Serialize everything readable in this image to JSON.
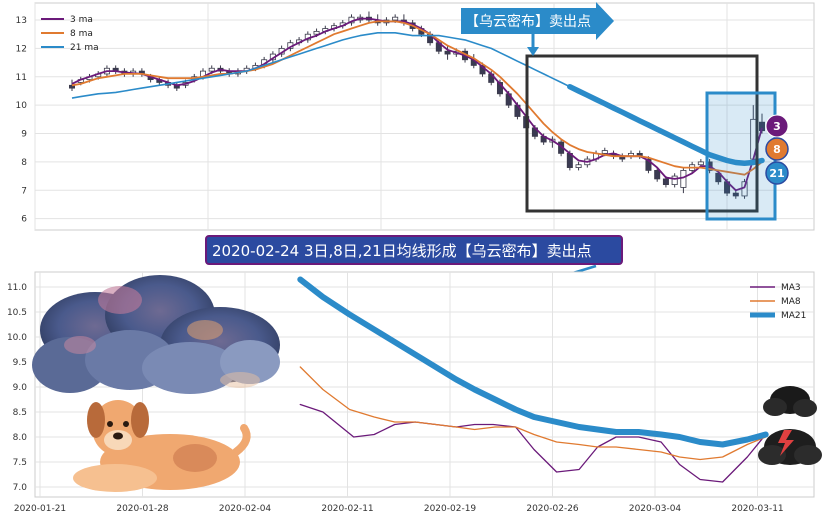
{
  "banner": {
    "text": "【乌云密布】卖出点"
  },
  "caption": {
    "text": "2020-02-24 3日,8日,21日均线形成【乌云密布】卖出点"
  },
  "colors": {
    "ma3": "#6b1a7a",
    "ma8": "#e07a30",
    "ma21": "#2b8bc9",
    "banner": "#2b8bc9",
    "caption_bg": "#2b4aa0",
    "box": "#333333",
    "highlight": "#2b8bc9"
  },
  "chart_data": [
    {
      "type": "candlestick",
      "title": "",
      "ylim": [
        5.6,
        13.6
      ],
      "y_ticks": [
        6,
        7,
        8,
        9,
        10,
        11,
        12,
        13
      ],
      "grid": true,
      "legend_position": "top-left",
      "legend": [
        "3 ma",
        "8 ma",
        "21 ma"
      ],
      "candles": [
        [
          10.7,
          10.9,
          10.5,
          10.6
        ],
        [
          10.8,
          11.0,
          10.7,
          10.9
        ],
        [
          10.9,
          11.1,
          10.8,
          11.0
        ],
        [
          11.0,
          11.2,
          10.9,
          11.1
        ],
        [
          11.1,
          11.4,
          11.0,
          11.3
        ],
        [
          11.3,
          11.4,
          11.1,
          11.2
        ],
        [
          11.2,
          11.3,
          11.0,
          11.1
        ],
        [
          11.1,
          11.3,
          11.0,
          11.2
        ],
        [
          11.2,
          11.3,
          11.0,
          11.1
        ],
        [
          11.0,
          11.1,
          10.8,
          10.9
        ],
        [
          10.9,
          11.0,
          10.7,
          10.8
        ],
        [
          10.8,
          10.9,
          10.6,
          10.7
        ],
        [
          10.7,
          10.8,
          10.5,
          10.6
        ],
        [
          10.7,
          10.9,
          10.6,
          10.8
        ],
        [
          10.9,
          11.1,
          10.8,
          11.0
        ],
        [
          11.0,
          11.3,
          10.9,
          11.2
        ],
        [
          11.2,
          11.4,
          11.1,
          11.3
        ],
        [
          11.3,
          11.4,
          11.1,
          11.2
        ],
        [
          11.2,
          11.3,
          11.0,
          11.1
        ],
        [
          11.1,
          11.3,
          11.0,
          11.2
        ],
        [
          11.2,
          11.4,
          11.1,
          11.3
        ],
        [
          11.3,
          11.5,
          11.2,
          11.4
        ],
        [
          11.4,
          11.7,
          11.3,
          11.6
        ],
        [
          11.6,
          11.9,
          11.5,
          11.8
        ],
        [
          11.8,
          12.1,
          11.7,
          12.0
        ],
        [
          12.0,
          12.3,
          11.9,
          12.2
        ],
        [
          12.2,
          12.4,
          12.1,
          12.3
        ],
        [
          12.3,
          12.6,
          12.2,
          12.5
        ],
        [
          12.5,
          12.7,
          12.4,
          12.6
        ],
        [
          12.6,
          12.8,
          12.5,
          12.7
        ],
        [
          12.7,
          12.9,
          12.6,
          12.8
        ],
        [
          12.8,
          13.0,
          12.7,
          12.9
        ],
        [
          12.9,
          13.2,
          12.8,
          13.1
        ],
        [
          13.0,
          13.2,
          12.9,
          13.1
        ],
        [
          13.1,
          13.3,
          12.9,
          13.0
        ],
        [
          13.0,
          13.2,
          12.8,
          12.9
        ],
        [
          12.9,
          13.1,
          12.8,
          13.0
        ],
        [
          13.0,
          13.2,
          12.9,
          13.1
        ],
        [
          13.0,
          13.2,
          12.8,
          12.9
        ],
        [
          12.9,
          13.0,
          12.6,
          12.7
        ],
        [
          12.7,
          12.8,
          12.4,
          12.5
        ],
        [
          12.5,
          12.6,
          12.1,
          12.2
        ],
        [
          12.2,
          12.3,
          11.8,
          11.9
        ],
        [
          11.9,
          12.1,
          11.6,
          11.8
        ],
        [
          11.8,
          12.0,
          11.7,
          11.9
        ],
        [
          11.9,
          12.0,
          11.5,
          11.6
        ],
        [
          11.6,
          11.8,
          11.3,
          11.4
        ],
        [
          11.4,
          11.5,
          11.0,
          11.1
        ],
        [
          11.1,
          11.2,
          10.7,
          10.8
        ],
        [
          10.8,
          10.9,
          10.3,
          10.4
        ],
        [
          10.4,
          10.5,
          9.9,
          10.0
        ],
        [
          10.0,
          10.1,
          9.5,
          9.6
        ],
        [
          9.6,
          9.7,
          9.1,
          9.2
        ],
        [
          9.2,
          9.3,
          8.8,
          8.9
        ],
        [
          8.9,
          9.0,
          8.6,
          8.7
        ],
        [
          8.7,
          8.9,
          8.5,
          8.8
        ],
        [
          8.7,
          8.8,
          8.2,
          8.3
        ],
        [
          8.3,
          8.4,
          7.7,
          7.8
        ],
        [
          7.8,
          8.0,
          7.7,
          7.9
        ],
        [
          7.9,
          8.2,
          7.8,
          8.1
        ],
        [
          8.1,
          8.4,
          8.0,
          8.3
        ],
        [
          8.3,
          8.5,
          8.2,
          8.4
        ],
        [
          8.3,
          8.4,
          8.1,
          8.2
        ],
        [
          8.2,
          8.3,
          8.0,
          8.1
        ],
        [
          8.2,
          8.4,
          8.1,
          8.3
        ],
        [
          8.3,
          8.4,
          8.1,
          8.2
        ],
        [
          8.1,
          8.2,
          7.6,
          7.7
        ],
        [
          7.7,
          7.8,
          7.3,
          7.4
        ],
        [
          7.4,
          7.5,
          7.1,
          7.2
        ],
        [
          7.2,
          7.6,
          7.1,
          7.5
        ],
        [
          7.1,
          7.8,
          6.9,
          7.7
        ],
        [
          7.7,
          8.0,
          7.6,
          7.9
        ],
        [
          7.9,
          8.1,
          7.8,
          8.0
        ],
        [
          8.0,
          8.1,
          7.6,
          7.7
        ],
        [
          7.6,
          7.7,
          7.2,
          7.3
        ],
        [
          7.3,
          7.4,
          6.8,
          6.9
        ],
        [
          6.9,
          7.0,
          6.7,
          6.8
        ],
        [
          6.8,
          7.4,
          6.7,
          7.3
        ],
        [
          8.1,
          10.0,
          7.9,
          9.5
        ],
        [
          9.4,
          9.7,
          9.0,
          9.1
        ]
      ],
      "series": [
        {
          "name": "3 ma",
          "values": [
            10.75,
            10.9,
            11.0,
            11.1,
            11.2,
            11.2,
            11.15,
            11.13,
            11.1,
            11.0,
            10.9,
            10.8,
            10.7,
            10.75,
            10.85,
            11.0,
            11.15,
            11.25,
            11.2,
            11.2,
            11.2,
            11.3,
            11.45,
            11.65,
            11.85,
            12.05,
            12.2,
            12.35,
            12.45,
            12.6,
            12.7,
            12.8,
            12.95,
            13.05,
            13.05,
            13.0,
            12.95,
            12.95,
            12.95,
            12.85,
            12.7,
            12.5,
            12.2,
            11.95,
            11.85,
            11.75,
            11.6,
            11.35,
            11.1,
            10.75,
            10.4,
            10.0,
            9.6,
            9.2,
            8.9,
            8.75,
            8.55,
            8.3,
            8.05,
            8.0,
            8.1,
            8.25,
            8.3,
            8.2,
            8.2,
            8.2,
            8.05,
            7.8,
            7.45,
            7.4,
            7.45,
            7.6,
            7.85,
            7.85,
            7.65,
            7.3,
            7.0,
            7.1,
            8.1,
            9.2
          ]
        },
        {
          "name": "8 ma",
          "values": [
            10.7,
            10.75,
            10.85,
            10.95,
            11.0,
            11.05,
            11.1,
            11.1,
            11.1,
            11.05,
            11.0,
            10.95,
            10.95,
            10.95,
            10.95,
            11.0,
            11.05,
            11.1,
            11.1,
            11.15,
            11.2,
            11.25,
            11.35,
            11.45,
            11.6,
            11.75,
            11.9,
            12.05,
            12.2,
            12.35,
            12.5,
            12.6,
            12.7,
            12.8,
            12.9,
            12.95,
            12.95,
            12.95,
            12.9,
            12.8,
            12.65,
            12.5,
            12.3,
            12.1,
            11.95,
            11.8,
            11.65,
            11.45,
            11.25,
            11.0,
            10.7,
            10.4,
            10.05,
            9.7,
            9.35,
            9.05,
            8.8,
            8.6,
            8.45,
            8.35,
            8.3,
            8.25,
            8.2,
            8.2,
            8.2,
            8.2,
            8.15,
            8.05,
            7.95,
            7.85,
            7.8,
            7.8,
            7.8,
            7.75,
            7.7,
            7.65,
            7.6,
            7.55,
            7.75,
            8.0
          ]
        },
        {
          "name": "21 ma",
          "values": [
            10.25,
            10.3,
            10.35,
            10.4,
            10.42,
            10.45,
            10.5,
            10.55,
            10.6,
            10.65,
            10.7,
            10.75,
            10.8,
            10.85,
            10.9,
            10.95,
            11.0,
            11.05,
            11.1,
            11.15,
            11.2,
            11.3,
            11.4,
            11.5,
            11.6,
            11.7,
            11.8,
            11.9,
            12.0,
            12.1,
            12.2,
            12.3,
            12.38,
            12.45,
            12.5,
            12.55,
            12.55,
            12.55,
            12.5,
            12.45,
            12.45,
            12.45,
            12.45,
            12.4,
            12.35,
            12.3,
            12.2,
            12.1,
            12.0,
            11.85,
            11.7,
            11.55,
            11.4,
            11.25,
            11.1,
            10.95,
            10.8,
            10.65,
            10.5,
            10.35,
            10.2,
            10.05,
            9.9,
            9.75,
            9.6,
            9.45,
            9.3,
            9.15,
            9.0,
            8.85,
            8.7,
            8.55,
            8.4,
            8.25,
            8.15,
            8.05,
            7.98,
            7.95,
            7.98,
            8.05
          ]
        }
      ],
      "badges": [
        "3",
        "8",
        "21"
      ]
    },
    {
      "type": "line",
      "title": "",
      "xlabel": "",
      "ylabel": "",
      "ylim": [
        6.9,
        11.2
      ],
      "y_ticks": [
        "7.0",
        "7.5",
        "8.0",
        "8.5",
        "9.0",
        "9.5",
        "10.0",
        "10.5",
        "11.0"
      ],
      "x_ticks": [
        "2020-01-21",
        "2020-01-28",
        "2020-02-04",
        "2020-02-11",
        "2020-02-19",
        "2020-02-26",
        "2020-03-04",
        "2020-03-11"
      ],
      "x_tick_positions": [
        0,
        5,
        10,
        15,
        20,
        25,
        30,
        35
      ],
      "grid": true,
      "legend_position": "top-right",
      "series": [
        {
          "name": "MA3",
          "x": [
            12.7,
            13.8,
            15.3,
            16.3,
            17.3,
            18.3,
            19.3,
            20.3,
            21.2,
            22.1,
            23.2,
            24.1,
            25.2,
            26.3,
            27.2,
            28.1,
            29.2,
            30.3,
            31.2,
            32.2,
            33.3,
            34.5,
            35.4
          ],
          "values": [
            8.65,
            8.5,
            8.0,
            8.05,
            8.25,
            8.3,
            8.25,
            8.2,
            8.25,
            8.25,
            8.2,
            7.75,
            7.3,
            7.35,
            7.8,
            8.0,
            8.0,
            7.9,
            7.45,
            7.15,
            7.1,
            7.6,
            8.05
          ]
        },
        {
          "name": "MA8",
          "x": [
            12.7,
            13.8,
            15.1,
            16.3,
            17.3,
            18.3,
            19.3,
            20.3,
            21.2,
            22.2,
            23.2,
            24.1,
            25.2,
            26.3,
            27.2,
            28.1,
            29.2,
            30.3,
            31.2,
            32.2,
            33.3,
            34.5,
            35.4
          ],
          "values": [
            9.4,
            8.95,
            8.55,
            8.4,
            8.3,
            8.3,
            8.25,
            8.2,
            8.15,
            8.2,
            8.2,
            8.05,
            7.9,
            7.85,
            7.8,
            7.8,
            7.75,
            7.7,
            7.6,
            7.55,
            7.6,
            7.85,
            8.0
          ]
        },
        {
          "name": "MA21",
          "x": [
            12.7,
            13.8,
            15.1,
            16.3,
            17.3,
            18.3,
            19.3,
            20.3,
            21.2,
            22.2,
            23.2,
            24.1,
            25.2,
            26.3,
            27.2,
            28.1,
            29.2,
            30.3,
            31.2,
            32.2,
            33.3,
            34.5,
            35.4
          ],
          "values": [
            11.15,
            10.8,
            10.45,
            10.15,
            9.9,
            9.65,
            9.4,
            9.15,
            8.95,
            8.75,
            8.55,
            8.4,
            8.3,
            8.2,
            8.15,
            8.1,
            8.1,
            8.05,
            8.0,
            7.9,
            7.85,
            7.95,
            8.05
          ]
        }
      ]
    }
  ]
}
